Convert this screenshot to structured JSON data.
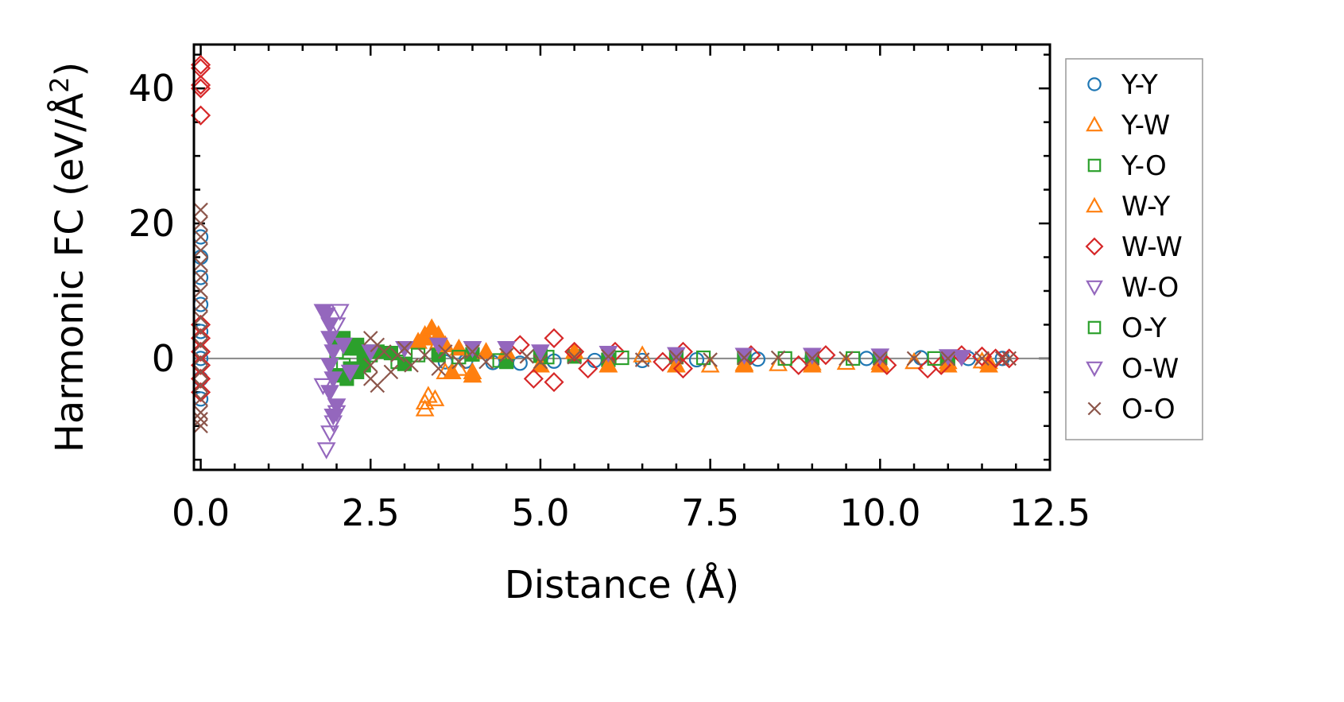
{
  "chart_data": {
    "type": "scatter",
    "xlabel": "Distance (Å)",
    "ylabel_main": "Harmonic FC (eV/Å",
    "ylabel_sup": "2",
    "ylabel_close": ")",
    "xlim": [
      -0.1,
      12.5
    ],
    "ylim": [
      -16.5,
      46.5
    ],
    "x_ticks": [
      {
        "value": 0,
        "label": "0.0"
      },
      {
        "value": 2.5,
        "label": "2.5"
      },
      {
        "value": 5.0,
        "label": "5.0"
      },
      {
        "value": 7.5,
        "label": "7.5"
      },
      {
        "value": 10.0,
        "label": "10.0"
      },
      {
        "value": 12.5,
        "label": "12.5"
      }
    ],
    "y_ticks": [
      {
        "value": 0,
        "label": "0"
      },
      {
        "value": 20,
        "label": "20"
      },
      {
        "value": 40,
        "label": "40"
      }
    ],
    "x_minor_step": 0.5,
    "y_minor_step": 5,
    "zero_line": true,
    "grid": false,
    "legend_position": "right-outside",
    "series": [
      {
        "name": "Y-Y",
        "marker": "circle",
        "color": "#1f77b4",
        "filled": false,
        "points": [
          [
            0.0,
            18
          ],
          [
            0.0,
            15
          ],
          [
            0.0,
            12
          ],
          [
            0.0,
            8
          ],
          [
            0.0,
            4
          ],
          [
            0.0,
            0
          ],
          [
            0.0,
            -3
          ],
          [
            0.0,
            -6
          ],
          [
            3.6,
            -0.5
          ],
          [
            3.9,
            -0.4
          ],
          [
            4.3,
            -0.6
          ],
          [
            4.7,
            -0.7
          ],
          [
            5.2,
            -0.4
          ],
          [
            5.8,
            -0.3
          ],
          [
            6.5,
            -0.3
          ],
          [
            7.3,
            -0.2
          ],
          [
            8.2,
            -0.1
          ],
          [
            9.0,
            0.1
          ],
          [
            9.8,
            0.0
          ],
          [
            10.6,
            0.1
          ],
          [
            11.3,
            0.0
          ],
          [
            11.8,
            0.0
          ]
        ]
      },
      {
        "name": "Y-W",
        "marker": "triangle-up",
        "color": "#ff7f0e",
        "filled": false,
        "points": [
          [
            3.3,
            -7.5
          ],
          [
            3.3,
            -6.5
          ],
          [
            3.35,
            -5.5
          ],
          [
            3.45,
            -6.0
          ],
          [
            3.3,
            3.5
          ],
          [
            3.4,
            4.0
          ],
          [
            3.5,
            2.5
          ],
          [
            3.6,
            -2.0
          ],
          [
            3.8,
            -1.5
          ],
          [
            4.0,
            -2.0
          ],
          [
            4.5,
            1.0
          ],
          [
            5.0,
            -1.0
          ],
          [
            5.5,
            1.0
          ],
          [
            6.0,
            -1.0
          ],
          [
            6.5,
            0.5
          ],
          [
            7.0,
            -1.0
          ],
          [
            7.5,
            -1.0
          ],
          [
            8.0,
            -0.8
          ],
          [
            8.5,
            -0.8
          ],
          [
            9.0,
            -0.7
          ],
          [
            9.5,
            -0.6
          ],
          [
            10.0,
            -0.6
          ],
          [
            10.5,
            -0.5
          ],
          [
            11.0,
            -0.5
          ],
          [
            11.5,
            -0.4
          ],
          [
            11.6,
            -0.5
          ]
        ]
      },
      {
        "name": "Y-O",
        "marker": "square",
        "color": "#2ca02c",
        "filled": true,
        "points": [
          [
            2.0,
            2.5
          ],
          [
            2.0,
            -2.5
          ],
          [
            2.1,
            3.0
          ],
          [
            2.15,
            -3.0
          ],
          [
            2.2,
            1.5
          ],
          [
            2.2,
            -1.5
          ],
          [
            2.3,
            2.0
          ],
          [
            2.3,
            -2.0
          ],
          [
            2.4,
            1.0
          ],
          [
            2.4,
            -1.0
          ],
          [
            2.6,
            1.0
          ],
          [
            2.8,
            0.8
          ],
          [
            3.0,
            -0.8
          ],
          [
            3.5,
            0.5
          ],
          [
            4.0,
            0.6
          ],
          [
            4.5,
            -0.5
          ],
          [
            5.0,
            0.4
          ],
          [
            5.5,
            0.3
          ],
          [
            6.0,
            -0.2
          ],
          [
            7.0,
            0.2
          ],
          [
            8.0,
            0.1
          ],
          [
            9.0,
            0.1
          ],
          [
            10.0,
            0.1
          ],
          [
            11.0,
            0.0
          ]
        ]
      },
      {
        "name": "W-Y",
        "marker": "triangle-up",
        "color": "#ff7f0e",
        "filled": true,
        "points": [
          [
            3.2,
            2.5
          ],
          [
            3.3,
            3.0
          ],
          [
            3.4,
            4.5
          ],
          [
            3.5,
            3.5
          ],
          [
            3.6,
            2.0
          ],
          [
            3.7,
            -2.0
          ],
          [
            3.8,
            1.5
          ],
          [
            4.0,
            -2.5
          ],
          [
            4.2,
            1.0
          ],
          [
            4.5,
            1.0
          ],
          [
            5.0,
            -1.0
          ],
          [
            5.5,
            1.0
          ],
          [
            6.0,
            -1.0
          ],
          [
            7.0,
            -1.0
          ],
          [
            8.0,
            -1.0
          ],
          [
            9.0,
            -1.0
          ],
          [
            10.0,
            -1.0
          ],
          [
            11.0,
            -1.0
          ],
          [
            11.6,
            -1.0
          ]
        ]
      },
      {
        "name": "W-W",
        "marker": "diamond",
        "color": "#d62728",
        "filled": false,
        "points": [
          [
            0.0,
            43.5
          ],
          [
            0.0,
            43.0
          ],
          [
            0.0,
            40.5
          ],
          [
            0.0,
            40.0
          ],
          [
            0.0,
            36.0
          ],
          [
            0.0,
            5.0
          ],
          [
            0.0,
            3.0
          ],
          [
            0.0,
            1.0
          ],
          [
            0.0,
            -1.0
          ],
          [
            0.0,
            -3.0
          ],
          [
            0.0,
            -5.0
          ],
          [
            4.7,
            2.0
          ],
          [
            4.9,
            -3.0
          ],
          [
            5.2,
            3.0
          ],
          [
            5.2,
            -3.5
          ],
          [
            5.5,
            1.0
          ],
          [
            5.7,
            -1.5
          ],
          [
            6.1,
            1.0
          ],
          [
            6.8,
            -0.5
          ],
          [
            7.1,
            1.0
          ],
          [
            7.1,
            -1.5
          ],
          [
            8.1,
            0.5
          ],
          [
            8.8,
            -1.0
          ],
          [
            9.2,
            0.5
          ],
          [
            10.1,
            -1.0
          ],
          [
            10.7,
            -1.5
          ],
          [
            10.9,
            -1.0
          ],
          [
            11.2,
            0.5
          ],
          [
            11.5,
            0.3
          ],
          [
            11.7,
            0.0
          ],
          [
            11.9,
            0.0
          ]
        ]
      },
      {
        "name": "W-O",
        "marker": "triangle-down",
        "color": "#9467bd",
        "filled": false,
        "points": [
          [
            1.85,
            -13.5
          ],
          [
            1.9,
            -11.0
          ],
          [
            1.95,
            -9.5
          ],
          [
            2.0,
            -8.0
          ],
          [
            1.8,
            -4.0
          ],
          [
            2.0,
            5.0
          ],
          [
            2.05,
            7.0
          ]
        ]
      },
      {
        "name": "O-Y",
        "marker": "square",
        "color": "#2ca02c",
        "filled": false,
        "points": [
          [
            2.0,
            1.0
          ],
          [
            2.1,
            -1.0
          ],
          [
            2.3,
            1.5
          ],
          [
            2.5,
            0.5
          ],
          [
            2.9,
            -0.5
          ],
          [
            3.2,
            0.5
          ],
          [
            3.8,
            0.2
          ],
          [
            4.4,
            -0.3
          ],
          [
            5.1,
            0.2
          ],
          [
            6.2,
            0.1
          ],
          [
            7.4,
            0.1
          ],
          [
            8.6,
            0.0
          ],
          [
            9.6,
            0.0
          ],
          [
            10.8,
            0.0
          ]
        ]
      },
      {
        "name": "O-W",
        "marker": "triangle-down",
        "color": "#9467bd",
        "filled": true,
        "points": [
          [
            1.8,
            7.0
          ],
          [
            1.85,
            6.5
          ],
          [
            1.9,
            5.0
          ],
          [
            1.9,
            3.0
          ],
          [
            1.95,
            1.0
          ],
          [
            1.9,
            -1.0
          ],
          [
            1.95,
            -3.0
          ],
          [
            1.9,
            -5.0
          ],
          [
            2.0,
            -7.0
          ],
          [
            1.95,
            -8.5
          ],
          [
            2.1,
            2.0
          ],
          [
            2.2,
            -2.0
          ],
          [
            2.5,
            1.0
          ],
          [
            3.0,
            1.5
          ],
          [
            3.5,
            2.0
          ],
          [
            4.0,
            1.5
          ],
          [
            4.5,
            1.5
          ],
          [
            5.0,
            1.0
          ],
          [
            6.0,
            0.8
          ],
          [
            7.0,
            0.6
          ],
          [
            8.0,
            0.5
          ],
          [
            9.0,
            0.5
          ],
          [
            10.0,
            0.4
          ],
          [
            11.0,
            0.3
          ],
          [
            11.2,
            0.2
          ]
        ]
      },
      {
        "name": "O-O",
        "marker": "x",
        "color": "#8c564b",
        "filled": false,
        "points": [
          [
            0.0,
            22.0
          ],
          [
            0.0,
            20.0
          ],
          [
            0.0,
            18.0
          ],
          [
            0.0,
            16.0
          ],
          [
            0.0,
            14.0
          ],
          [
            0.0,
            12.0
          ],
          [
            0.0,
            10.0
          ],
          [
            0.0,
            8.0
          ],
          [
            0.0,
            6.0
          ],
          [
            0.0,
            4.0
          ],
          [
            0.0,
            2.0
          ],
          [
            0.0,
            0.0
          ],
          [
            0.0,
            -2.0
          ],
          [
            0.0,
            -4.0
          ],
          [
            0.0,
            -6.0
          ],
          [
            0.0,
            -8.0
          ],
          [
            0.0,
            -9.0
          ],
          [
            0.0,
            -10.0
          ],
          [
            2.5,
            3.0
          ],
          [
            2.6,
            2.0
          ],
          [
            2.5,
            -1.0
          ],
          [
            2.5,
            -3.0
          ],
          [
            2.6,
            -4.0
          ],
          [
            2.7,
            1.0
          ],
          [
            2.8,
            -2.0
          ],
          [
            2.9,
            0.5
          ],
          [
            3.0,
            1.5
          ],
          [
            3.1,
            -1.0
          ],
          [
            3.3,
            0.5
          ],
          [
            3.5,
            -1.5
          ],
          [
            3.6,
            1.0
          ],
          [
            3.8,
            -0.5
          ],
          [
            4.0,
            1.0
          ],
          [
            4.2,
            -0.5
          ],
          [
            4.5,
            0.5
          ],
          [
            4.8,
            0.3
          ],
          [
            5.0,
            -0.5
          ],
          [
            5.5,
            0.2
          ],
          [
            6.0,
            0.3
          ],
          [
            6.5,
            -0.2
          ],
          [
            7.0,
            0.2
          ],
          [
            7.5,
            -0.2
          ],
          [
            8.0,
            0.1
          ],
          [
            8.5,
            0.1
          ],
          [
            9.0,
            0.0
          ],
          [
            9.5,
            0.0
          ],
          [
            10.0,
            0.0
          ],
          [
            10.5,
            0.0
          ],
          [
            11.0,
            0.0
          ],
          [
            11.5,
            0.0
          ],
          [
            11.8,
            0.0
          ],
          [
            11.9,
            0.0
          ]
        ]
      }
    ]
  }
}
